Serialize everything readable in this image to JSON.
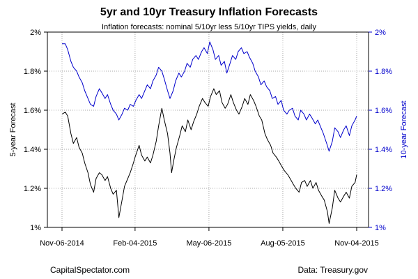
{
  "chart_data": {
    "type": "line",
    "title": "5yr and 10yr Treasury Inflation Forecasts",
    "subtitle": "Inflation forecasts: nominal 5/10yr less 5/10yr TIPS yields, daily",
    "ylabel_left": "5-year Forecast",
    "ylabel_right": "10-year Forecast",
    "ylim": [
      1.0,
      2.0
    ],
    "y_ticks": [
      1.0,
      1.2,
      1.4,
      1.6,
      1.8,
      2.0
    ],
    "y_tick_labels": [
      "1%",
      "1.2%",
      "1.4%",
      "1.6%",
      "1.8%",
      "2%"
    ],
    "x_range": [
      "2014-11-06",
      "2015-11-04"
    ],
    "x_ticks": [
      "2014-11-06",
      "2015-02-04",
      "2015-05-06",
      "2015-08-05",
      "2015-11-04"
    ],
    "x_tick_labels": [
      "Nov-06-2014",
      "Feb-04-2015",
      "May-06-2015",
      "Aug-05-2015",
      "Nov-04-2015"
    ],
    "grid": true,
    "series": [
      {
        "color": "#000000",
        "points": [
          [
            "2014-11-06",
            1.58
          ],
          [
            "2014-11-10",
            1.59
          ],
          [
            "2014-11-13",
            1.57
          ],
          [
            "2014-11-17",
            1.48
          ],
          [
            "2014-11-20",
            1.43
          ],
          [
            "2014-11-24",
            1.46
          ],
          [
            "2014-11-27",
            1.41
          ],
          [
            "2014-12-01",
            1.38
          ],
          [
            "2014-12-04",
            1.33
          ],
          [
            "2014-12-08",
            1.28
          ],
          [
            "2014-12-11",
            1.22
          ],
          [
            "2014-12-15",
            1.18
          ],
          [
            "2014-12-18",
            1.25
          ],
          [
            "2014-12-22",
            1.28
          ],
          [
            "2014-12-25",
            1.27
          ],
          [
            "2014-12-29",
            1.24
          ],
          [
            "2015-01-01",
            1.26
          ],
          [
            "2015-01-05",
            1.2
          ],
          [
            "2015-01-08",
            1.17
          ],
          [
            "2015-01-12",
            1.19
          ],
          [
            "2015-01-14",
            1.1
          ],
          [
            "2015-01-15",
            1.05
          ],
          [
            "2015-01-19",
            1.14
          ],
          [
            "2015-01-22",
            1.21
          ],
          [
            "2015-01-26",
            1.25
          ],
          [
            "2015-01-29",
            1.28
          ],
          [
            "2015-02-02",
            1.33
          ],
          [
            "2015-02-04",
            1.36
          ],
          [
            "2015-02-09",
            1.42
          ],
          [
            "2015-02-12",
            1.37
          ],
          [
            "2015-02-16",
            1.34
          ],
          [
            "2015-02-19",
            1.36
          ],
          [
            "2015-02-23",
            1.33
          ],
          [
            "2015-02-26",
            1.37
          ],
          [
            "2015-03-02",
            1.44
          ],
          [
            "2015-03-05",
            1.52
          ],
          [
            "2015-03-09",
            1.61
          ],
          [
            "2015-03-12",
            1.55
          ],
          [
            "2015-03-16",
            1.48
          ],
          [
            "2015-03-19",
            1.38
          ],
          [
            "2015-03-21",
            1.28
          ],
          [
            "2015-03-24",
            1.35
          ],
          [
            "2015-03-27",
            1.41
          ],
          [
            "2015-03-31",
            1.47
          ],
          [
            "2015-04-03",
            1.52
          ],
          [
            "2015-04-07",
            1.49
          ],
          [
            "2015-04-10",
            1.55
          ],
          [
            "2015-04-14",
            1.5
          ],
          [
            "2015-04-17",
            1.54
          ],
          [
            "2015-04-21",
            1.58
          ],
          [
            "2015-04-24",
            1.62
          ],
          [
            "2015-04-28",
            1.66
          ],
          [
            "2015-05-01",
            1.64
          ],
          [
            "2015-05-05",
            1.62
          ],
          [
            "2015-05-08",
            1.67
          ],
          [
            "2015-05-12",
            1.71
          ],
          [
            "2015-05-15",
            1.68
          ],
          [
            "2015-05-19",
            1.7
          ],
          [
            "2015-05-22",
            1.64
          ],
          [
            "2015-05-26",
            1.61
          ],
          [
            "2015-05-29",
            1.63
          ],
          [
            "2015-06-02",
            1.68
          ],
          [
            "2015-06-05",
            1.64
          ],
          [
            "2015-06-09",
            1.6
          ],
          [
            "2015-06-12",
            1.58
          ],
          [
            "2015-06-16",
            1.62
          ],
          [
            "2015-06-19",
            1.66
          ],
          [
            "2015-06-23",
            1.63
          ],
          [
            "2015-06-26",
            1.68
          ],
          [
            "2015-06-30",
            1.65
          ],
          [
            "2015-07-03",
            1.62
          ],
          [
            "2015-07-07",
            1.57
          ],
          [
            "2015-07-10",
            1.55
          ],
          [
            "2015-07-14",
            1.48
          ],
          [
            "2015-07-17",
            1.45
          ],
          [
            "2015-07-21",
            1.42
          ],
          [
            "2015-07-24",
            1.38
          ],
          [
            "2015-07-28",
            1.36
          ],
          [
            "2015-07-31",
            1.34
          ],
          [
            "2015-08-04",
            1.31
          ],
          [
            "2015-08-07",
            1.29
          ],
          [
            "2015-08-11",
            1.27
          ],
          [
            "2015-08-14",
            1.25
          ],
          [
            "2015-08-18",
            1.22
          ],
          [
            "2015-08-21",
            1.2
          ],
          [
            "2015-08-25",
            1.18
          ],
          [
            "2015-08-28",
            1.23
          ],
          [
            "2015-09-01",
            1.24
          ],
          [
            "2015-09-04",
            1.21
          ],
          [
            "2015-09-08",
            1.24
          ],
          [
            "2015-09-11",
            1.2
          ],
          [
            "2015-09-15",
            1.23
          ],
          [
            "2015-09-18",
            1.19
          ],
          [
            "2015-09-22",
            1.16
          ],
          [
            "2015-09-25",
            1.14
          ],
          [
            "2015-09-29",
            1.08
          ],
          [
            "2015-10-01",
            1.02
          ],
          [
            "2015-10-05",
            1.1
          ],
          [
            "2015-10-08",
            1.19
          ],
          [
            "2015-10-12",
            1.15
          ],
          [
            "2015-10-15",
            1.13
          ],
          [
            "2015-10-19",
            1.16
          ],
          [
            "2015-10-22",
            1.18
          ],
          [
            "2015-10-26",
            1.15
          ],
          [
            "2015-10-29",
            1.21
          ],
          [
            "2015-11-02",
            1.23
          ],
          [
            "2015-11-04",
            1.27
          ]
        ]
      },
      {
        "color": "#0000cc",
        "points": [
          [
            "2014-11-06",
            1.94
          ],
          [
            "2014-11-10",
            1.94
          ],
          [
            "2014-11-13",
            1.91
          ],
          [
            "2014-11-17",
            1.85
          ],
          [
            "2014-11-20",
            1.82
          ],
          [
            "2014-11-24",
            1.8
          ],
          [
            "2014-11-27",
            1.77
          ],
          [
            "2014-12-01",
            1.74
          ],
          [
            "2014-12-04",
            1.7
          ],
          [
            "2014-12-08",
            1.66
          ],
          [
            "2014-12-11",
            1.63
          ],
          [
            "2014-12-15",
            1.62
          ],
          [
            "2014-12-18",
            1.67
          ],
          [
            "2014-12-22",
            1.71
          ],
          [
            "2014-12-25",
            1.69
          ],
          [
            "2014-12-29",
            1.66
          ],
          [
            "2015-01-01",
            1.68
          ],
          [
            "2015-01-05",
            1.63
          ],
          [
            "2015-01-08",
            1.6
          ],
          [
            "2015-01-12",
            1.58
          ],
          [
            "2015-01-15",
            1.55
          ],
          [
            "2015-01-19",
            1.58
          ],
          [
            "2015-01-22",
            1.61
          ],
          [
            "2015-01-26",
            1.6
          ],
          [
            "2015-01-29",
            1.63
          ],
          [
            "2015-02-02",
            1.62
          ],
          [
            "2015-02-05",
            1.65
          ],
          [
            "2015-02-09",
            1.68
          ],
          [
            "2015-02-12",
            1.66
          ],
          [
            "2015-02-16",
            1.7
          ],
          [
            "2015-02-19",
            1.73
          ],
          [
            "2015-02-23",
            1.71
          ],
          [
            "2015-02-26",
            1.75
          ],
          [
            "2015-03-02",
            1.78
          ],
          [
            "2015-03-05",
            1.82
          ],
          [
            "2015-03-09",
            1.8
          ],
          [
            "2015-03-12",
            1.76
          ],
          [
            "2015-03-16",
            1.7
          ],
          [
            "2015-03-19",
            1.66
          ],
          [
            "2015-03-23",
            1.7
          ],
          [
            "2015-03-26",
            1.75
          ],
          [
            "2015-03-30",
            1.79
          ],
          [
            "2015-04-02",
            1.77
          ],
          [
            "2015-04-06",
            1.8
          ],
          [
            "2015-04-09",
            1.84
          ],
          [
            "2015-04-13",
            1.82
          ],
          [
            "2015-04-16",
            1.86
          ],
          [
            "2015-04-20",
            1.88
          ],
          [
            "2015-04-23",
            1.86
          ],
          [
            "2015-04-27",
            1.9
          ],
          [
            "2015-04-30",
            1.92
          ],
          [
            "2015-05-04",
            1.89
          ],
          [
            "2015-05-07",
            1.95
          ],
          [
            "2015-05-11",
            1.91
          ],
          [
            "2015-05-14",
            1.86
          ],
          [
            "2015-05-18",
            1.88
          ],
          [
            "2015-05-21",
            1.83
          ],
          [
            "2015-05-25",
            1.85
          ],
          [
            "2015-05-28",
            1.79
          ],
          [
            "2015-06-01",
            1.84
          ],
          [
            "2015-06-04",
            1.88
          ],
          [
            "2015-06-08",
            1.86
          ],
          [
            "2015-06-11",
            1.9
          ],
          [
            "2015-06-15",
            1.92
          ],
          [
            "2015-06-18",
            1.89
          ],
          [
            "2015-06-22",
            1.9
          ],
          [
            "2015-06-25",
            1.87
          ],
          [
            "2015-06-29",
            1.84
          ],
          [
            "2015-07-02",
            1.8
          ],
          [
            "2015-07-06",
            1.77
          ],
          [
            "2015-07-09",
            1.73
          ],
          [
            "2015-07-13",
            1.75
          ],
          [
            "2015-07-16",
            1.72
          ],
          [
            "2015-07-20",
            1.7
          ],
          [
            "2015-07-23",
            1.66
          ],
          [
            "2015-07-27",
            1.67
          ],
          [
            "2015-07-30",
            1.63
          ],
          [
            "2015-08-03",
            1.65
          ],
          [
            "2015-08-06",
            1.6
          ],
          [
            "2015-08-10",
            1.58
          ],
          [
            "2015-08-13",
            1.6
          ],
          [
            "2015-08-17",
            1.61
          ],
          [
            "2015-08-20",
            1.57
          ],
          [
            "2015-08-24",
            1.55
          ],
          [
            "2015-08-27",
            1.6
          ],
          [
            "2015-08-31",
            1.58
          ],
          [
            "2015-09-03",
            1.55
          ],
          [
            "2015-09-07",
            1.58
          ],
          [
            "2015-09-10",
            1.56
          ],
          [
            "2015-09-14",
            1.53
          ],
          [
            "2015-09-17",
            1.55
          ],
          [
            "2015-09-21",
            1.51
          ],
          [
            "2015-09-24",
            1.48
          ],
          [
            "2015-09-28",
            1.43
          ],
          [
            "2015-10-01",
            1.39
          ],
          [
            "2015-10-05",
            1.44
          ],
          [
            "2015-10-08",
            1.51
          ],
          [
            "2015-10-12",
            1.49
          ],
          [
            "2015-10-15",
            1.46
          ],
          [
            "2015-10-19",
            1.5
          ],
          [
            "2015-10-22",
            1.52
          ],
          [
            "2015-10-26",
            1.47
          ],
          [
            "2015-10-29",
            1.52
          ],
          [
            "2015-11-02",
            1.55
          ],
          [
            "2015-11-04",
            1.57
          ]
        ]
      }
    ]
  },
  "footer": {
    "left": "CapitalSpectator.com",
    "right": "Data: Treasury.gov"
  }
}
